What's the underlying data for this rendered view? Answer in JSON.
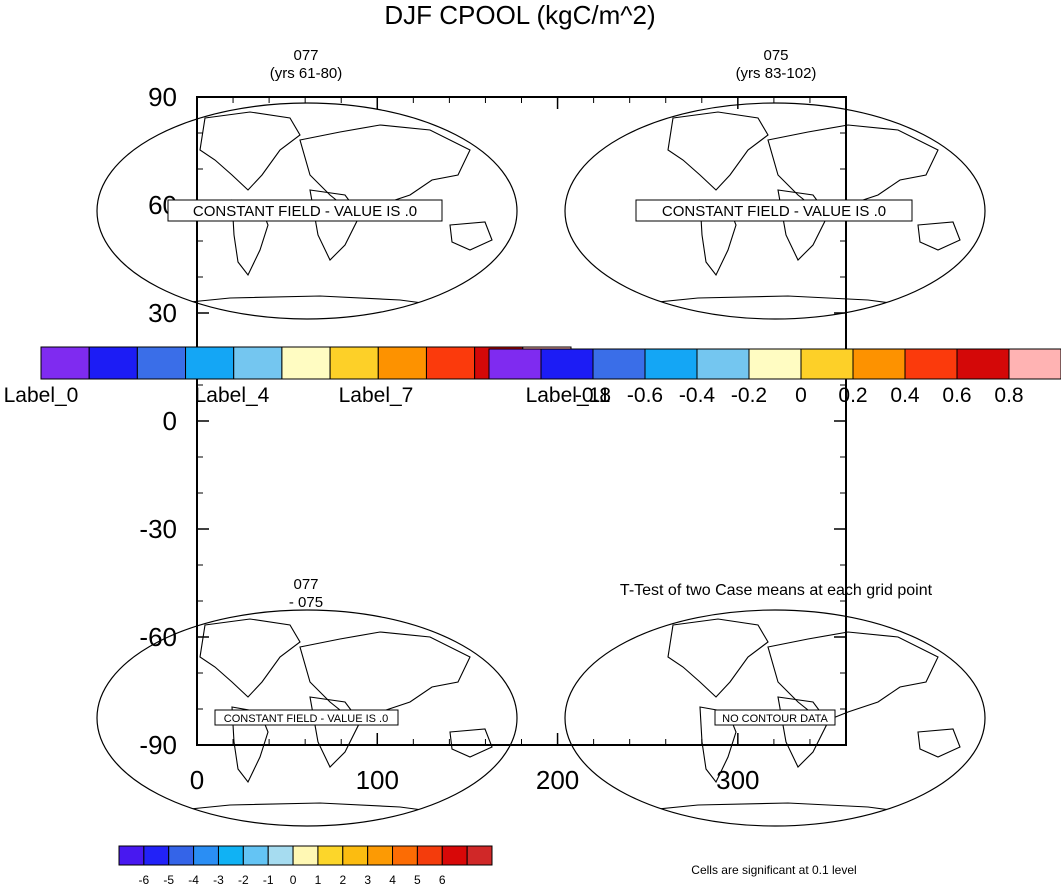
{
  "title": "DJF CPOOL (kgC/m^2)",
  "colors": {
    "bar_main": [
      "#7f2bf0",
      "#1c1cf5",
      "#3a6ee8",
      "#14a6f5",
      "#74c6f0",
      "#fffcc2",
      "#fdd028",
      "#fd9200",
      "#fb3a0c",
      "#d40808",
      "#ffb3b3"
    ],
    "bar_diff": [
      "#4818f0",
      "#2222f8",
      "#3464e8",
      "#2a8ef4",
      "#10b2f4",
      "#64c4f4",
      "#a6dcf0",
      "#fff8b4",
      "#fcd62a",
      "#fcbc10",
      "#fc9a04",
      "#fc6c04",
      "#f43c0c",
      "#d80808",
      "#d02828"
    ],
    "frame": "#000000"
  },
  "panels": [
    {
      "line1": "077",
      "line2": "(yrs 61-80)",
      "note": "CONSTANT FIELD - VALUE IS .0"
    },
    {
      "line1": "075",
      "line2": "(yrs 83-102)",
      "note": "CONSTANT FIELD - VALUE IS .0"
    },
    {
      "line1": "077",
      "line2": "- 075",
      "note": "CONSTANT FIELD - VALUE IS .0"
    },
    {
      "line1": "",
      "line2": "",
      "note": "NO CONTOUR DATA"
    }
  ],
  "ttest_title": "T-Test of two Case means at each grid point",
  "sig_note": "Cells are significant at 0.1 level",
  "colorbar_left_labels": [
    "Label_0",
    "Label_4",
    "Label_7",
    "Label_11"
  ],
  "colorbar_right_labels": [
    "-0.8",
    "-0.6",
    "-0.4",
    "-0.2",
    "0",
    "0.2",
    "0.4",
    "0.6",
    "0.8"
  ],
  "colorbar_bottom_labels": [
    "-6",
    "-5",
    "-4",
    "-3",
    "-2",
    "-1",
    "0",
    "1",
    "2",
    "3",
    "4",
    "5",
    "6"
  ],
  "chart_data": {
    "type": "heatmap",
    "title": "DJF CPOOL (kgC/m^2)",
    "xlabel": "",
    "ylabel": "",
    "x_ticks": [
      "0",
      "100",
      "200",
      "300"
    ],
    "y_ticks": [
      "90",
      "60",
      "30",
      "0",
      "-30",
      "-60",
      "-90"
    ],
    "xlim": [
      0,
      360
    ],
    "ylim": [
      -90,
      90
    ],
    "panels": [
      "077 (yrs 61-80)",
      "075 (yrs 83-102)",
      "077 - 075",
      "T-Test of two Case means at each grid point"
    ],
    "values": "CONSTANT FIELD - VALUE IS .0",
    "grid": false,
    "legend": "below"
  }
}
